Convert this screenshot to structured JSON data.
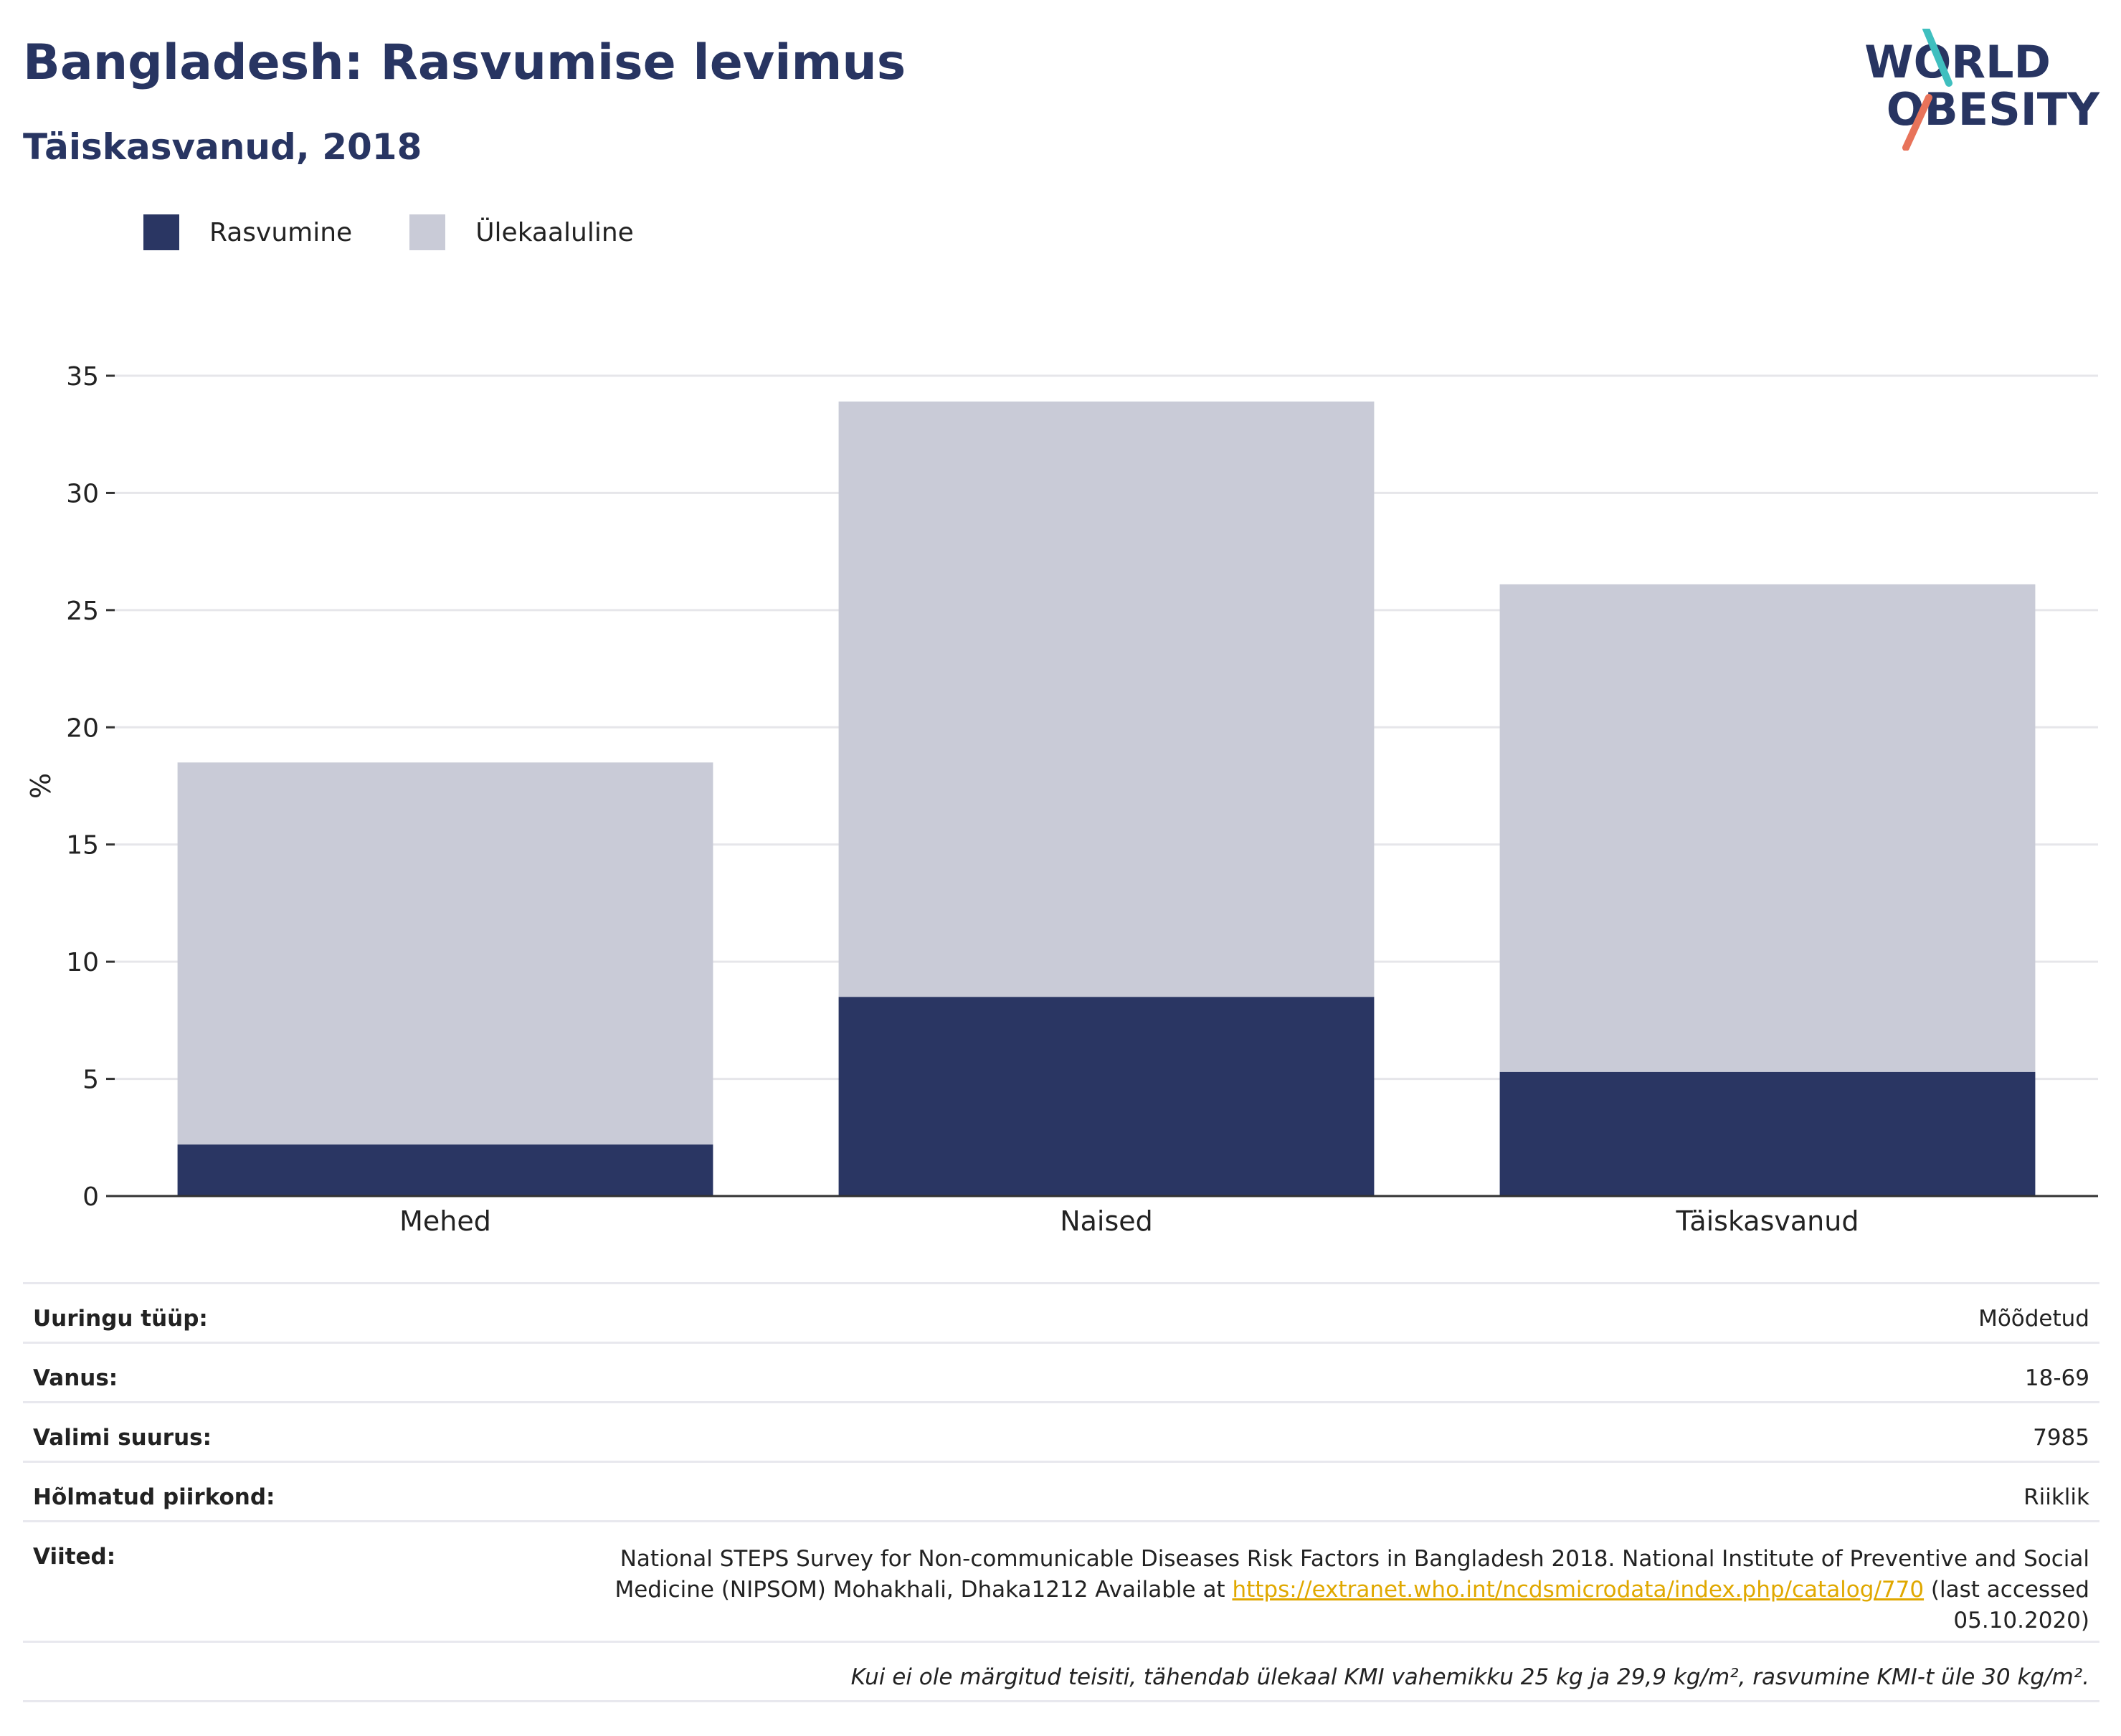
{
  "title": "Bangladesh: Rasvumise levimus",
  "subtitle": "Täiskasvanud, 2018",
  "logo": {
    "line1": "WORLD",
    "line2": "OBESITY",
    "accent_teal": "#3fbfbf",
    "accent_coral": "#e8735a"
  },
  "colors": {
    "obesity": "#2a3663",
    "overweight": "#c9cbd7",
    "axis": "#333333",
    "grid": "#e6e6ea"
  },
  "chart_data": {
    "type": "bar",
    "stacked": true,
    "categories": [
      "Mehed",
      "Naised",
      "Täiskasvanud"
    ],
    "series": [
      {
        "name": "Rasvumine",
        "values": [
          2.2,
          8.5,
          5.3
        ]
      },
      {
        "name": "Ülekaaluline",
        "values": [
          16.3,
          25.4,
          20.8
        ]
      }
    ],
    "ylabel": "%",
    "ylim": [
      0,
      35
    ],
    "yticks": [
      0,
      5,
      10,
      15,
      20,
      25,
      30,
      35
    ],
    "grid": true,
    "legend": "top-left"
  },
  "meta": {
    "survey_type": {
      "label": "Uuringu tüüp:",
      "value": "Mõõdetud"
    },
    "age": {
      "label": "Vanus:",
      "value": "18-69"
    },
    "sample": {
      "label": "Valimi suurus:",
      "value": "7985"
    },
    "region": {
      "label": "Hõlmatud piirkond:",
      "value": "Riiklik"
    },
    "refs": {
      "label": "Viited:",
      "text_before": "National STEPS Survey for Non-communicable Diseases Risk Factors in Bangladesh 2018. National Institute of Preventive and Social Medicine (NIPSOM) Mohakhali, Dhaka1212 Available at ",
      "link": "https://extranet.who.int/ncdsmicrodata/index.php/catalog/770",
      "text_after": " (last accessed 05.10.2020)"
    },
    "note": "Kui ei ole märgitud teisiti, tähendab ülekaal KMI vahemikku 25 kg ja 29,9 kg/m², rasvumine KMI-t üle 30 kg/m²."
  }
}
